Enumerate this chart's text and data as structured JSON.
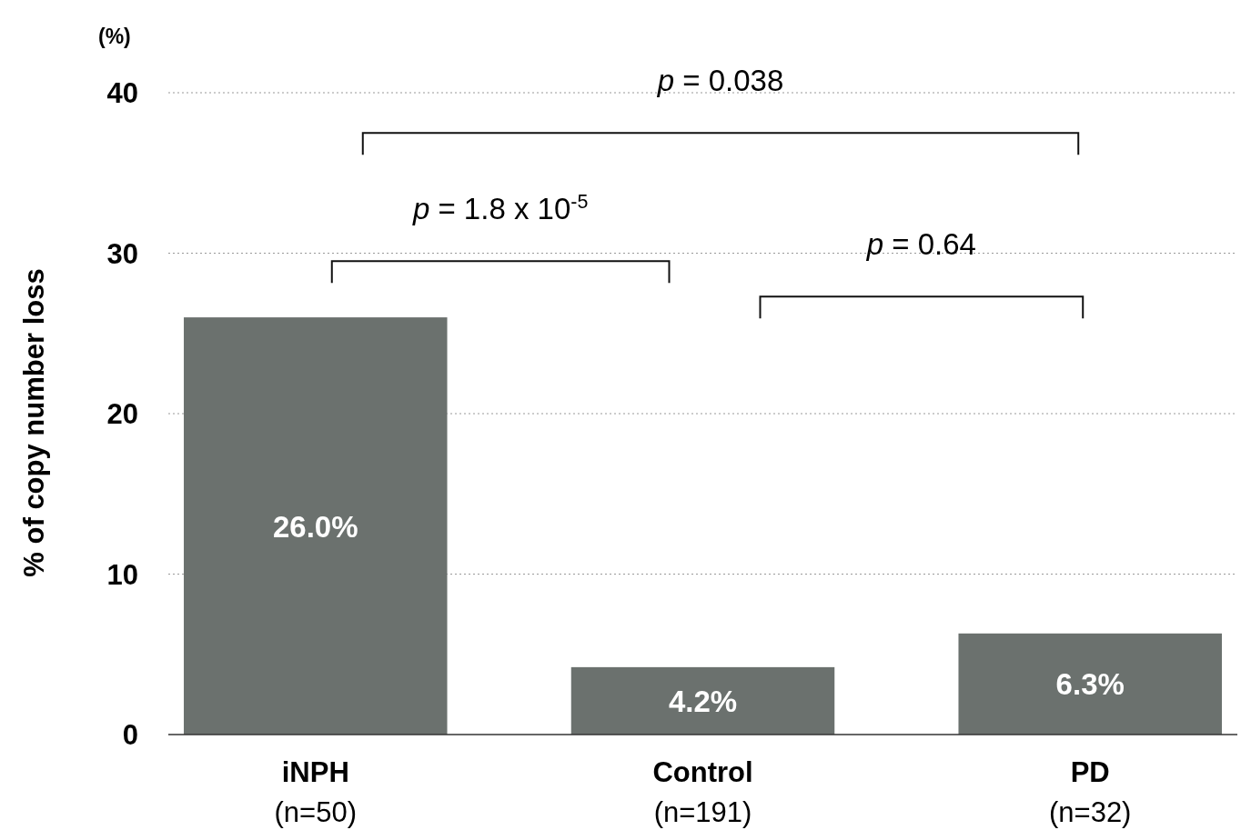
{
  "chart_data": {
    "type": "bar",
    "ylabel": "% of copy number loss",
    "categories": [
      "iNPH\n(n=50)",
      "Control\n(n=191)",
      "PD\n(n=32)"
    ],
    "values": [
      26.0,
      4.2,
      6.3
    ],
    "color": "#6b716e",
    "value_labels": [
      "26.0%",
      "4.2%",
      "6.3%"
    ],
    "ylim": [
      0,
      40
    ],
    "yticks": [
      0,
      10,
      20,
      30,
      40
    ],
    "grid": "y",
    "annotations": [
      "p = 0.038",
      "p = 1.8 x 10$^{-5}$",
      "p = 0.64",
      "(%)"
    ]
  }
}
